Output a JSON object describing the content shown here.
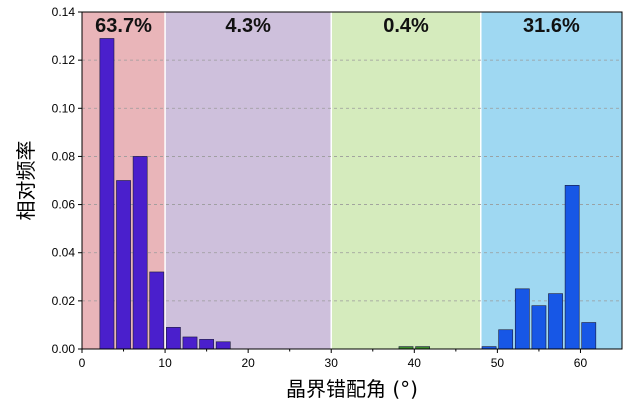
{
  "chart_data": {
    "type": "bar",
    "xlabel": "晶界错配角 (°)",
    "ylabel": "相对频率",
    "xlim": [
      0,
      65
    ],
    "ylim": [
      0,
      0.14
    ],
    "x_ticks": [
      0,
      10,
      20,
      30,
      40,
      50,
      60
    ],
    "y_ticks": [
      0.0,
      0.02,
      0.04,
      0.06,
      0.08,
      0.1,
      0.12,
      0.14
    ],
    "y_tick_labels": [
      "0.00",
      "0.02",
      "0.04",
      "0.06",
      "0.08",
      "0.10",
      "0.12",
      "0.14"
    ],
    "grid": "horizontal-dashed",
    "regions": [
      {
        "from": 0,
        "to": 10,
        "label": "63.7%",
        "color": "#e9b5b9"
      },
      {
        "from": 10,
        "to": 30,
        "label": "4.3%",
        "color": "#cec0dc"
      },
      {
        "from": 30,
        "to": 48,
        "label": "0.4%",
        "color": "#d5ebbd"
      },
      {
        "from": 48,
        "to": 65,
        "label": "31.6%",
        "color": "#9fd8f2"
      }
    ],
    "series": [
      {
        "color": "#4a1fcc",
        "x": [
          3,
          5,
          7,
          9,
          11,
          13,
          15,
          17
        ],
        "values": [
          0.129,
          0.07,
          0.08,
          0.032,
          0.009,
          0.005,
          0.004,
          0.003
        ]
      },
      {
        "color": "#3c8c2c",
        "x": [
          39,
          41
        ],
        "values": [
          0.001,
          0.001
        ]
      },
      {
        "color": "#1757e6",
        "x": [
          49,
          51,
          53,
          55,
          57,
          59,
          61
        ],
        "values": [
          0.001,
          0.008,
          0.025,
          0.018,
          0.023,
          0.068,
          0.011
        ]
      }
    ],
    "bar_width": 1.7
  }
}
